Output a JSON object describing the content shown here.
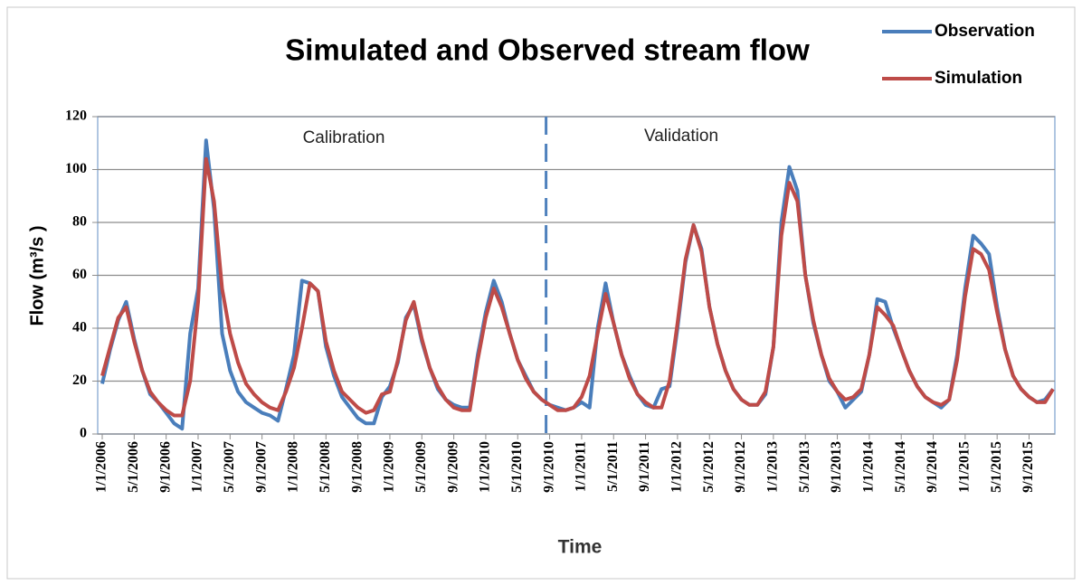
{
  "chart_data": {
    "type": "line",
    "title": "Simulated and Observed stream flow",
    "xlabel": "Time",
    "ylabel": "Flow (m³/s )",
    "annotations": [
      "Calibration",
      "Validation"
    ],
    "split": "9/1/2010",
    "categories": [
      "1/1/2006",
      null,
      null,
      null,
      "5/1/2006",
      null,
      null,
      null,
      "9/1/2006",
      null,
      null,
      null,
      "1/1/2007",
      null,
      null,
      null,
      "5/1/2007",
      null,
      null,
      null,
      "9/1/2007",
      null,
      null,
      null,
      "1/1/2008",
      null,
      null,
      null,
      "5/1/2008",
      null,
      null,
      null,
      "9/1/2008",
      null,
      null,
      null,
      "1/1/2009",
      null,
      null,
      null,
      "5/1/2009",
      null,
      null,
      null,
      "9/1/2009",
      null,
      null,
      null,
      "1/1/2010",
      null,
      null,
      null,
      "5/1/2010",
      null,
      null,
      null,
      "9/1/2010",
      null,
      null,
      null,
      "1/1/2011",
      null,
      null,
      null,
      "5/1/2011",
      null,
      null,
      null,
      "9/1/2011",
      null,
      null,
      null,
      "1/1/2012",
      null,
      null,
      null,
      "5/1/2012",
      null,
      null,
      null,
      "9/1/2012",
      null,
      null,
      null,
      "1/1/2013",
      null,
      null,
      null,
      "5/1/2013",
      null,
      null,
      null,
      "9/1/2013",
      null,
      null,
      null,
      "1/1/2014",
      null,
      null,
      null,
      "5/1/2014",
      null,
      null,
      null,
      "9/1/2014",
      null,
      null,
      null,
      "1/1/2015",
      null,
      null,
      null,
      "5/1/2015",
      null,
      null,
      null,
      "9/1/2015",
      null,
      null,
      null
    ],
    "series": [
      {
        "name": "Observation",
        "color": "#4a7ebb",
        "values": [
          19,
          32,
          43,
          50,
          36,
          24,
          15,
          12,
          8,
          4,
          2,
          38,
          55,
          111,
          85,
          38,
          24,
          16,
          12,
          10,
          8,
          7,
          5,
          17,
          30,
          58,
          57,
          54,
          33,
          22,
          14,
          10,
          6,
          4,
          4,
          14,
          18,
          27,
          44,
          49,
          35,
          25,
          17,
          13,
          11,
          10,
          10,
          30,
          46,
          58,
          50,
          38,
          28,
          22,
          16,
          13,
          11,
          10,
          9,
          10,
          12,
          10,
          40,
          57,
          42,
          30,
          22,
          15,
          11,
          10,
          17,
          18,
          40,
          65,
          79,
          70,
          48,
          34,
          24,
          17,
          13,
          11,
          11,
          15,
          33,
          80,
          101,
          92,
          60,
          42,
          30,
          20,
          16,
          10,
          13,
          16,
          30,
          51,
          50,
          40,
          32,
          24,
          18,
          14,
          12,
          10,
          13,
          30,
          55,
          75,
          72,
          68,
          48,
          32,
          22,
          17,
          14,
          12,
          13,
          17
        ]
      },
      {
        "name": "Simulation",
        "color": "#be4b48",
        "values": [
          22,
          33,
          44,
          48,
          35,
          24,
          16,
          12,
          9,
          7,
          7,
          20,
          50,
          104,
          88,
          55,
          38,
          27,
          19,
          15,
          12,
          10,
          9,
          16,
          25,
          40,
          57,
          54,
          35,
          24,
          16,
          13,
          10,
          8,
          9,
          15,
          16,
          28,
          43,
          50,
          36,
          25,
          18,
          13,
          10,
          9,
          9,
          28,
          44,
          55,
          48,
          38,
          28,
          21,
          16,
          13,
          11,
          9,
          9,
          10,
          14,
          22,
          38,
          53,
          42,
          30,
          21,
          15,
          12,
          10,
          10,
          20,
          42,
          66,
          79,
          69,
          48,
          34,
          24,
          17,
          13,
          11,
          11,
          16,
          33,
          75,
          95,
          88,
          60,
          43,
          30,
          21,
          16,
          13,
          14,
          17,
          30,
          48,
          45,
          41,
          32,
          24,
          18,
          14,
          12,
          11,
          13,
          28,
          52,
          70,
          68,
          62,
          46,
          32,
          22,
          17,
          14,
          12,
          12,
          17
        ]
      }
    ],
    "ylim": [
      0,
      120
    ],
    "yticks": [
      0,
      20,
      40,
      60,
      80,
      100,
      120
    ],
    "grid": true,
    "legend": "top-right"
  }
}
